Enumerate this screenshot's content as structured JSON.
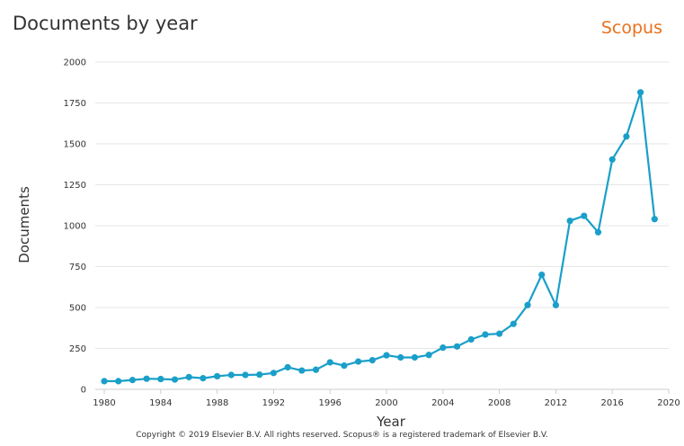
{
  "header": {
    "title": "Documents by year",
    "brand": "Scopus"
  },
  "footer": {
    "copyright": "Copyright © 2019 Elsevier B.V. All rights reserved. Scopus® is a registered trademark of Elsevier B.V."
  },
  "colors": {
    "line": "#1a9fc9",
    "brand": "#e9711c",
    "grid": "#e6e6e6",
    "text": "#333333"
  },
  "chart_data": {
    "type": "line",
    "title": "Documents by year",
    "xlabel": "Year",
    "ylabel": "Documents",
    "xlim": [
      1980,
      2020
    ],
    "ylim": [
      0,
      2000
    ],
    "xticks": [
      1980,
      1984,
      1988,
      1992,
      1996,
      2000,
      2004,
      2008,
      2012,
      2016,
      2020
    ],
    "yticks": [
      0,
      250,
      500,
      750,
      1000,
      1250,
      1500,
      1750,
      2000
    ],
    "grid": true,
    "series": [
      {
        "x": [
          1980,
          1981,
          1982,
          1983,
          1984,
          1985,
          1986,
          1987,
          1988,
          1989,
          1990,
          1991,
          1992,
          1993,
          1994,
          1995,
          1996,
          1997,
          1998,
          1999,
          2000,
          2001,
          2002,
          2003,
          2004,
          2005,
          2006,
          2007,
          2008,
          2009,
          2010,
          2011,
          2012,
          2013,
          2014,
          2015,
          2016,
          2017,
          2018,
          2019
        ],
        "y": [
          50,
          50,
          57,
          65,
          63,
          60,
          75,
          68,
          80,
          88,
          88,
          90,
          100,
          135,
          115,
          120,
          165,
          145,
          170,
          178,
          208,
          195,
          195,
          210,
          255,
          262,
          305,
          335,
          340,
          400,
          515,
          700,
          515,
          1030,
          1060,
          960,
          1405,
          1545,
          1815,
          1040
        ]
      }
    ]
  }
}
